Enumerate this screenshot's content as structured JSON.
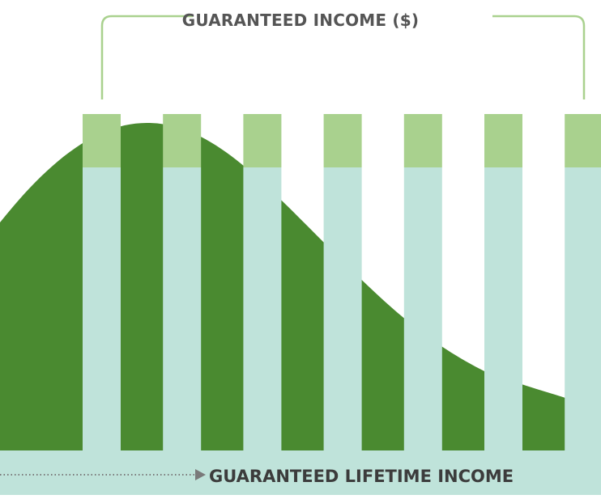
{
  "diagram": {
    "top_label": "GUARANTEED INCOME ($)",
    "bottom_label": "GUARANTEED LIFETIME INCOME",
    "colors": {
      "curve": "#4a8a30",
      "bar_cap": "#a9d18e",
      "bar_body": "#bfe3da",
      "bracket": "#a9d18e",
      "arrow": "#7a7a7a",
      "text": "#555555"
    },
    "bar_count": 7
  }
}
